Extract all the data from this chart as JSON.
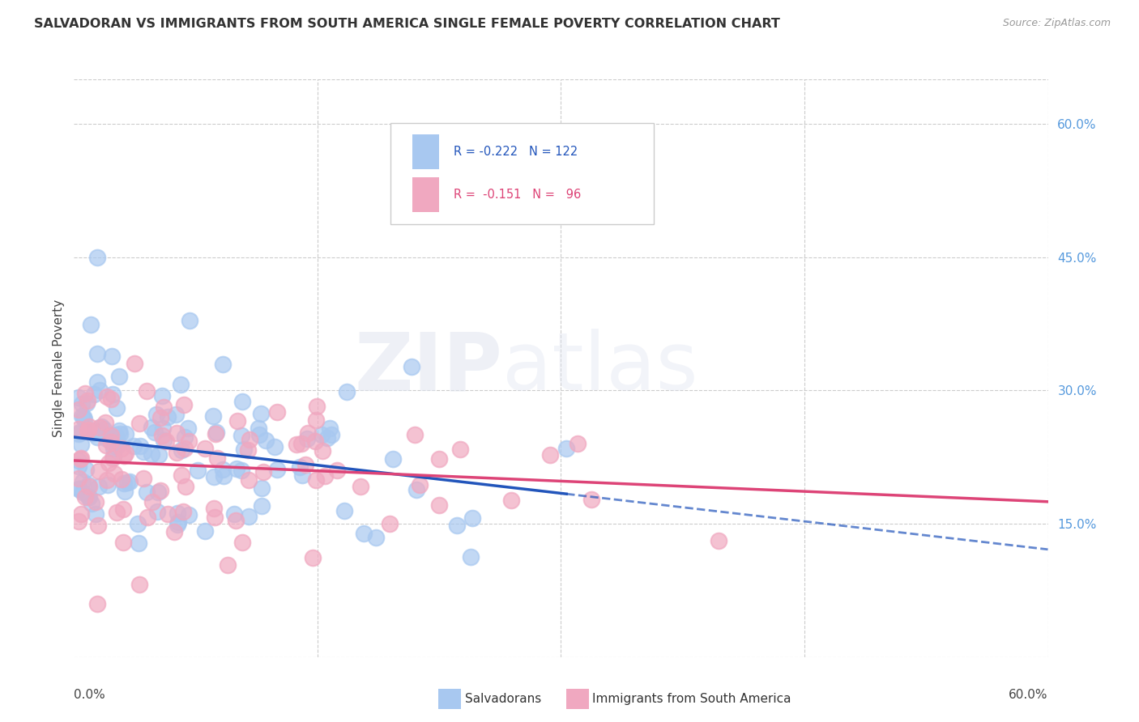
{
  "title": "SALVADORAN VS IMMIGRANTS FROM SOUTH AMERICA SINGLE FEMALE POVERTY CORRELATION CHART",
  "source": "Source: ZipAtlas.com",
  "ylabel": "Single Female Poverty",
  "right_yticks": [
    "60.0%",
    "45.0%",
    "30.0%",
    "15.0%"
  ],
  "right_ytick_vals": [
    0.6,
    0.45,
    0.3,
    0.15
  ],
  "xlim": [
    0.0,
    0.6
  ],
  "ylim": [
    0.0,
    0.65
  ],
  "salvadoran_color": "#a8c8f0",
  "south_america_color": "#f0a8c0",
  "salvadoran_trend_color": "#2255bb",
  "south_america_trend_color": "#dd4477",
  "salvadoran_R": -0.222,
  "salvadoran_N": 122,
  "south_america_R": -0.151,
  "south_america_N": 96,
  "watermark_zip": "ZIP",
  "watermark_atlas": "atlas",
  "legend_label_1": "Salvadorans",
  "legend_label_2": "Immigrants from South America",
  "grid_color": "#cccccc",
  "background_color": "#ffffff"
}
